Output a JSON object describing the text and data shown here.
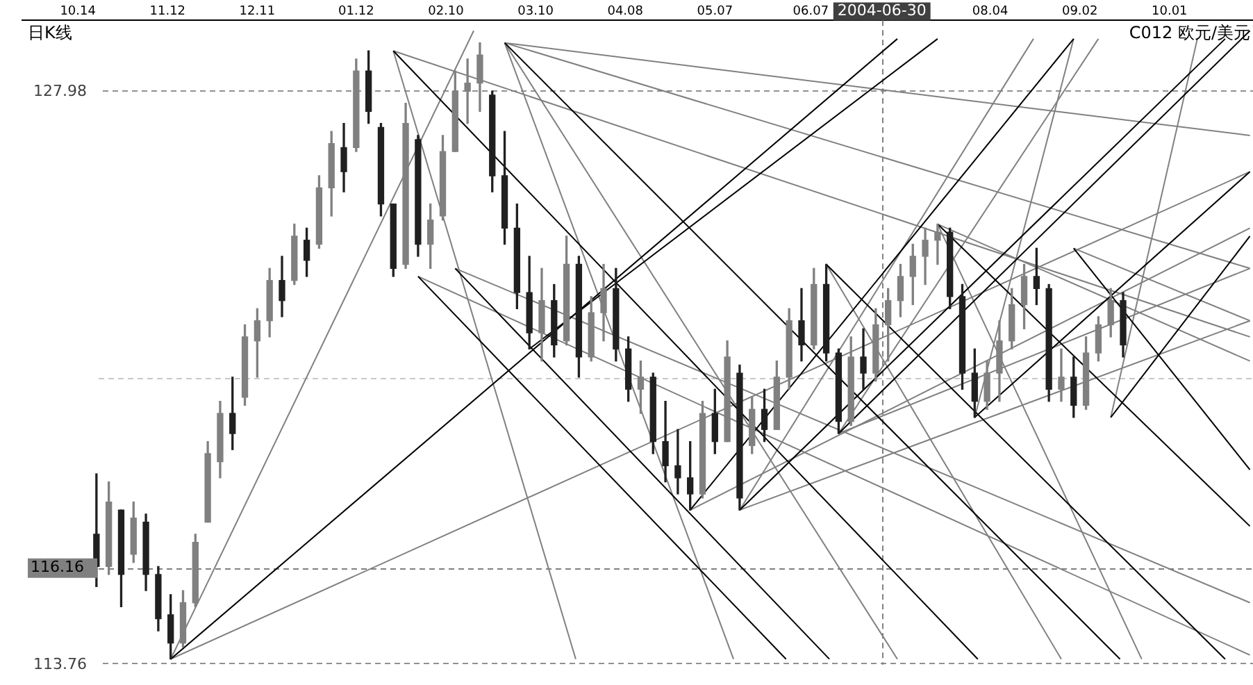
{
  "chart_data": {
    "type": "candlestick",
    "title": "日K线",
    "subtitle": "C012 欧元/美元",
    "xlim": [
      "2003-09-26",
      "2004-10-28"
    ],
    "xticks": [
      {
        "value": "2003-10-14",
        "label": "10.14"
      },
      {
        "value": "2003-11-12",
        "label": "11.12"
      },
      {
        "value": "2003-12-11",
        "label": "12.11"
      },
      {
        "value": "2004-01-12",
        "label": "01.12"
      },
      {
        "value": "2004-02-10",
        "label": "02.10"
      },
      {
        "value": "2004-03-10",
        "label": "03.10"
      },
      {
        "value": "2004-04-08",
        "label": "04.08"
      },
      {
        "value": "2004-05-07",
        "label": "05.07"
      },
      {
        "value": "2004-06-07",
        "label": "06.07"
      },
      {
        "value": "2004-08-04",
        "label": "08.04"
      },
      {
        "value": "2004-09-02",
        "label": "09.02"
      },
      {
        "value": "2004-10-01",
        "label": "10.01"
      }
    ],
    "ylim": [
      113.76,
      129.76
    ],
    "yticks": [
      113.76,
      127.98
    ],
    "grid": "y",
    "marker": "none",
    "x": [
      "2003-10-20",
      "2003-10-24",
      "2003-10-28",
      "2003-11-01",
      "2003-11-05",
      "2003-11-09",
      "2003-11-13",
      "2003-11-17",
      "2003-11-21",
      "2003-11-25",
      "2003-11-29",
      "2003-12-03",
      "2003-12-07",
      "2003-12-11",
      "2003-12-15",
      "2003-12-19",
      "2003-12-23",
      "2003-12-27",
      "2003-12-31",
      "2004-01-04",
      "2004-01-08",
      "2004-01-12",
      "2004-01-16",
      "2004-01-20",
      "2004-01-24",
      "2004-01-28",
      "2004-02-01",
      "2004-02-05",
      "2004-02-09",
      "2004-02-13",
      "2004-02-17",
      "2004-02-21",
      "2004-02-25",
      "2004-02-29",
      "2004-03-04",
      "2004-03-08",
      "2004-03-12",
      "2004-03-16",
      "2004-03-20",
      "2004-03-24",
      "2004-03-28",
      "2004-04-01",
      "2004-04-05",
      "2004-04-09",
      "2004-04-13",
      "2004-04-17",
      "2004-04-21",
      "2004-04-25",
      "2004-04-29",
      "2004-05-03",
      "2004-05-07",
      "2004-05-11",
      "2004-05-15",
      "2004-05-19",
      "2004-05-23",
      "2004-05-27",
      "2004-05-31",
      "2004-06-04",
      "2004-06-08",
      "2004-06-12",
      "2004-06-16",
      "2004-06-20",
      "2004-06-24",
      "2004-06-28",
      "2004-07-02",
      "2004-07-06",
      "2004-07-10",
      "2004-07-14",
      "2004-07-18",
      "2004-07-22",
      "2004-07-26",
      "2004-07-30",
      "2004-08-03",
      "2004-08-07",
      "2004-08-11",
      "2004-08-15",
      "2004-08-19",
      "2004-08-23",
      "2004-08-27",
      "2004-08-31",
      "2004-09-04",
      "2004-09-08",
      "2004-09-12",
      "2004-09-16"
    ],
    "ohlc": [
      [
        117.0,
        118.5,
        115.7,
        116.2
      ],
      [
        116.2,
        118.3,
        116.0,
        117.8
      ],
      [
        117.6,
        117.6,
        115.2,
        116.0
      ],
      [
        116.5,
        117.8,
        116.3,
        117.4
      ],
      [
        117.3,
        117.5,
        115.6,
        116.0
      ],
      [
        116.0,
        116.2,
        114.6,
        114.9
      ],
      [
        115.0,
        115.5,
        113.9,
        114.3
      ],
      [
        114.3,
        115.6,
        114.2,
        115.3
      ],
      [
        115.3,
        117.0,
        115.2,
        116.8
      ],
      [
        117.3,
        119.3,
        117.3,
        119.0
      ],
      [
        118.8,
        120.3,
        118.4,
        120.0
      ],
      [
        120.0,
        120.9,
        119.1,
        119.5
      ],
      [
        120.4,
        122.2,
        120.2,
        121.9
      ],
      [
        121.8,
        122.6,
        120.9,
        122.3
      ],
      [
        122.3,
        123.6,
        121.9,
        123.3
      ],
      [
        123.3,
        123.9,
        122.4,
        122.8
      ],
      [
        123.3,
        124.7,
        123.2,
        124.4
      ],
      [
        124.3,
        124.6,
        123.4,
        123.8
      ],
      [
        124.2,
        125.9,
        124.1,
        125.6
      ],
      [
        125.6,
        127.0,
        124.9,
        126.7
      ],
      [
        126.6,
        127.2,
        125.5,
        126.0
      ],
      [
        126.6,
        128.8,
        126.5,
        128.5
      ],
      [
        128.5,
        129.0,
        127.2,
        127.5
      ],
      [
        127.1,
        127.2,
        124.9,
        125.2
      ],
      [
        125.2,
        125.2,
        123.4,
        123.6
      ],
      [
        123.7,
        127.7,
        123.6,
        127.2
      ],
      [
        126.8,
        126.9,
        123.9,
        124.2
      ],
      [
        124.2,
        125.2,
        123.6,
        124.8
      ],
      [
        124.9,
        126.9,
        124.8,
        126.5
      ],
      [
        126.5,
        128.5,
        126.5,
        128.0
      ],
      [
        128.0,
        128.8,
        127.2,
        128.2
      ],
      [
        128.2,
        129.2,
        127.5,
        128.9
      ],
      [
        127.9,
        128.0,
        125.5,
        125.9
      ],
      [
        125.9,
        127.0,
        124.2,
        124.6
      ],
      [
        124.6,
        125.2,
        122.6,
        123.0
      ],
      [
        123.0,
        123.9,
        121.6,
        122.0
      ],
      [
        122.0,
        123.6,
        121.3,
        122.8
      ],
      [
        122.8,
        123.2,
        121.4,
        121.7
      ],
      [
        121.8,
        124.4,
        121.7,
        123.7
      ],
      [
        123.7,
        123.9,
        120.9,
        121.4
      ],
      [
        121.4,
        122.9,
        121.3,
        122.5
      ],
      [
        122.5,
        123.7,
        121.8,
        123.1
      ],
      [
        123.1,
        123.6,
        121.3,
        121.6
      ],
      [
        121.6,
        121.9,
        120.3,
        120.6
      ],
      [
        120.6,
        121.3,
        120.0,
        120.9
      ],
      [
        120.9,
        121.0,
        119.0,
        119.3
      ],
      [
        119.3,
        120.3,
        118.3,
        118.7
      ],
      [
        118.7,
        119.6,
        118.0,
        118.4
      ],
      [
        118.4,
        119.3,
        117.6,
        118.0
      ],
      [
        118.0,
        120.3,
        117.9,
        120.0
      ],
      [
        120.0,
        120.6,
        119.0,
        119.3
      ],
      [
        119.3,
        121.8,
        119.3,
        121.4
      ],
      [
        121.0,
        121.2,
        117.6,
        117.9
      ],
      [
        119.2,
        120.4,
        119.0,
        120.1
      ],
      [
        120.1,
        120.6,
        119.3,
        119.6
      ],
      [
        119.6,
        121.3,
        119.6,
        120.9
      ],
      [
        120.9,
        122.6,
        120.6,
        122.3
      ],
      [
        122.3,
        123.1,
        121.3,
        121.7
      ],
      [
        121.7,
        123.6,
        121.6,
        123.2
      ],
      [
        123.2,
        123.7,
        121.3,
        121.5
      ],
      [
        121.5,
        121.6,
        119.5,
        119.8
      ],
      [
        119.8,
        121.9,
        119.7,
        121.4
      ],
      [
        121.4,
        122.1,
        120.6,
        121.0
      ],
      [
        121.0,
        122.6,
        120.8,
        122.2
      ],
      [
        122.2,
        123.1,
        121.3,
        122.8
      ],
      [
        122.8,
        123.7,
        122.4,
        123.4
      ],
      [
        123.4,
        124.2,
        122.7,
        123.9
      ],
      [
        123.9,
        124.6,
        123.2,
        124.3
      ],
      [
        124.3,
        124.7,
        123.7,
        124.5
      ],
      [
        124.5,
        124.6,
        122.6,
        122.9
      ],
      [
        122.9,
        123.2,
        120.6,
        121.0
      ],
      [
        121.0,
        121.6,
        119.9,
        120.3
      ],
      [
        120.3,
        121.3,
        120.1,
        121.0
      ],
      [
        121.0,
        122.3,
        120.3,
        121.8
      ],
      [
        121.8,
        123.1,
        121.6,
        122.7
      ],
      [
        122.7,
        123.7,
        122.1,
        123.4
      ],
      [
        123.4,
        124.1,
        122.7,
        123.1
      ],
      [
        123.1,
        123.2,
        120.3,
        120.6
      ],
      [
        120.6,
        121.6,
        120.3,
        120.9
      ],
      [
        120.9,
        121.4,
        119.9,
        120.2
      ],
      [
        120.2,
        121.9,
        120.1,
        121.5
      ],
      [
        121.5,
        122.4,
        121.3,
        122.2
      ],
      [
        122.2,
        123.1,
        121.9,
        122.8
      ],
      [
        122.8,
        123.0,
        121.4,
        121.7
      ]
    ],
    "series": [
      {
        "type": "line",
        "x": [
          "2004-01-24",
          "2004-07-31"
        ],
        "values": [
          129.0,
          113.9
        ],
        "color": "#000000"
      },
      {
        "type": "line",
        "x": [
          "2004-02-01",
          "2004-05-30"
        ],
        "values": [
          123.4,
          113.9
        ],
        "color": "#000000"
      },
      {
        "type": "line",
        "x": [
          "2004-02-13",
          "2004-06-13"
        ],
        "values": [
          123.6,
          113.9
        ],
        "color": "#000000"
      },
      {
        "type": "line",
        "x": [
          "2004-02-29",
          "2004-09-15"
        ],
        "values": [
          129.2,
          113.9
        ],
        "color": "#000000"
      },
      {
        "type": "line",
        "x": [
          "2003-11-13",
          "2004-07-05"
        ],
        "values": [
          113.9,
          129.3
        ],
        "color": "#000000"
      },
      {
        "type": "line",
        "x": [
          "2004-04-29",
          "2004-08-31"
        ],
        "values": [
          117.6,
          129.3
        ],
        "color": "#000000"
      },
      {
        "type": "line",
        "x": [
          "2004-05-15",
          "2004-10-19"
        ],
        "values": [
          117.6,
          129.3
        ],
        "color": "#000000"
      },
      {
        "type": "line",
        "x": [
          "2004-06-16",
          "2004-10-27"
        ],
        "values": [
          119.5,
          129.5
        ],
        "color": "#000000"
      },
      {
        "type": "line",
        "x": [
          "2004-07-30",
          "2004-10-27"
        ],
        "values": [
          119.9,
          126.0
        ],
        "color": "#000000"
      },
      {
        "type": "line",
        "x": [
          "2004-09-12",
          "2004-10-27"
        ],
        "values": [
          119.9,
          124.4
        ],
        "color": "#000000"
      },
      {
        "type": "line",
        "x": [
          "2004-07-18",
          "2004-10-27"
        ],
        "values": [
          124.7,
          117.2
        ],
        "color": "#000000"
      },
      {
        "type": "line",
        "x": [
          "2004-08-31",
          "2004-10-27"
        ],
        "values": [
          124.1,
          118.6
        ],
        "color": "#000000"
      },
      {
        "type": "line",
        "x": [
          "2004-06-12",
          "2004-10-19"
        ],
        "values": [
          123.7,
          113.9
        ],
        "color": "#000000"
      },
      {
        "type": "line",
        "x": [
          "2004-03-08",
          "2004-07-18"
        ],
        "values": [
          121.6,
          129.3
        ],
        "color": "#000000"
      },
      {
        "type": "line",
        "x": [
          "2003-11-13",
          "2004-02-19"
        ],
        "values": [
          113.9,
          129.5
        ],
        "color": "#808080"
      },
      {
        "type": "line",
        "x": [
          "2003-11-13",
          "2004-10-27"
        ],
        "values": [
          113.9,
          126.0
        ],
        "color": "#808080"
      },
      {
        "type": "line",
        "x": [
          "2004-01-24",
          "2004-03-23"
        ],
        "values": [
          129.0,
          113.9
        ],
        "color": "#808080"
      },
      {
        "type": "line",
        "x": [
          "2004-02-29",
          "2004-05-13"
        ],
        "values": [
          129.2,
          113.9
        ],
        "color": "#808080"
      },
      {
        "type": "line",
        "x": [
          "2004-02-29",
          "2004-07-05"
        ],
        "values": [
          129.2,
          113.9
        ],
        "color": "#808080"
      },
      {
        "type": "line",
        "x": [
          "2004-01-24",
          "2004-10-27"
        ],
        "values": [
          129.0,
          121.9
        ],
        "color": "#808080"
      },
      {
        "type": "line",
        "x": [
          "2004-02-29",
          "2004-10-27"
        ],
        "values": [
          129.2,
          123.6
        ],
        "color": "#808080"
      },
      {
        "type": "line",
        "x": [
          "2004-02-29",
          "2004-10-27"
        ],
        "values": [
          129.2,
          126.9
        ],
        "color": "#808080"
      },
      {
        "type": "line",
        "x": [
          "2004-02-01",
          "2004-10-27"
        ],
        "values": [
          123.4,
          114.0
        ],
        "color": "#808080"
      },
      {
        "type": "line",
        "x": [
          "2004-02-13",
          "2004-10-27"
        ],
        "values": [
          123.6,
          115.3
        ],
        "color": "#808080"
      },
      {
        "type": "line",
        "x": [
          "2004-04-29",
          "2004-10-27"
        ],
        "values": [
          117.6,
          124.6
        ],
        "color": "#808080"
      },
      {
        "type": "line",
        "x": [
          "2004-05-15",
          "2004-10-27"
        ],
        "values": [
          117.6,
          122.3
        ],
        "color": "#808080"
      },
      {
        "type": "line",
        "x": [
          "2004-06-16",
          "2004-10-27"
        ],
        "values": [
          119.5,
          123.6
        ],
        "color": "#808080"
      },
      {
        "type": "line",
        "x": [
          "2004-07-18",
          "2004-10-27"
        ],
        "values": [
          124.7,
          121.3
        ],
        "color": "#808080"
      },
      {
        "type": "line",
        "x": [
          "2004-08-31",
          "2004-10-27"
        ],
        "values": [
          124.1,
          122.3
        ],
        "color": "#808080"
      },
      {
        "type": "line",
        "x": [
          "2004-06-12",
          "2004-08-27"
        ],
        "values": [
          123.7,
          113.9
        ],
        "color": "#808080"
      },
      {
        "type": "line",
        "x": [
          "2004-07-18",
          "2004-09-22"
        ],
        "values": [
          124.7,
          113.9
        ],
        "color": "#808080"
      },
      {
        "type": "line",
        "x": [
          "2004-05-15",
          "2004-08-18"
        ],
        "values": [
          117.6,
          129.3
        ],
        "color": "#808080"
      },
      {
        "type": "line",
        "x": [
          "2004-06-16",
          "2004-09-08"
        ],
        "values": [
          119.5,
          129.3
        ],
        "color": "#808080"
      },
      {
        "type": "line",
        "x": [
          "2004-07-30",
          "2004-08-31"
        ],
        "values": [
          119.9,
          129.3
        ],
        "color": "#808080"
      },
      {
        "type": "line",
        "x": [
          "2004-09-12",
          "2004-10-10"
        ],
        "values": [
          119.9,
          129.3
        ],
        "color": "#808080"
      }
    ],
    "ref_lines": [
      {
        "axis": "x",
        "value": "2004-06-30",
        "label": "2004-06-30",
        "color": "#808080"
      },
      {
        "axis": "y",
        "value": 116.16,
        "label": "116.16",
        "color": "#808080"
      },
      {
        "axis": "y",
        "value": 120.87,
        "color": "#c8c8c8"
      }
    ]
  }
}
